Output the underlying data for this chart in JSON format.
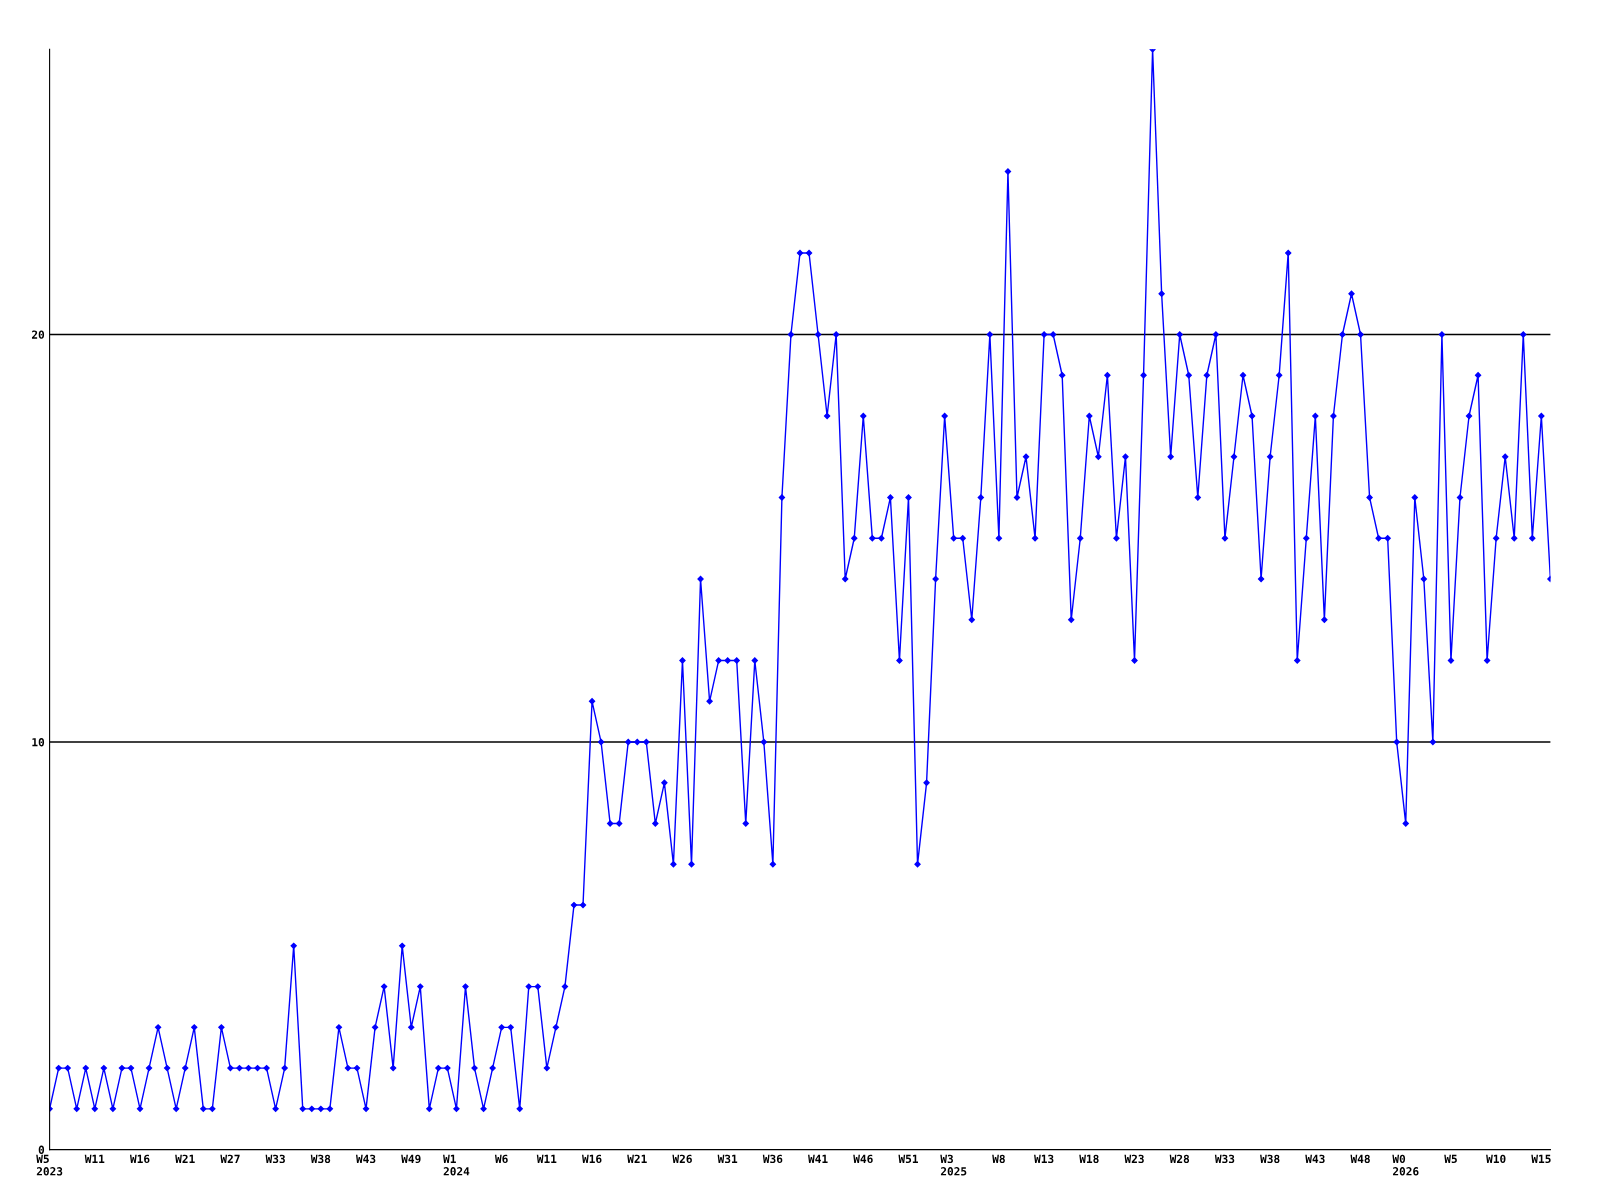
{
  "chart_data": {
    "type": "line",
    "categories": [
      "W5\n2023",
      null,
      null,
      null,
      null,
      "W11",
      null,
      null,
      null,
      null,
      "W16",
      null,
      null,
      null,
      null,
      "W21",
      null,
      null,
      null,
      null,
      "W27",
      null,
      null,
      null,
      null,
      "W33",
      null,
      null,
      null,
      null,
      "W38",
      null,
      null,
      null,
      null,
      "W43",
      null,
      null,
      null,
      null,
      "W49",
      null,
      null,
      null,
      null,
      "W1\n2024",
      null,
      null,
      null,
      null,
      "W6",
      null,
      null,
      null,
      null,
      "W11",
      null,
      null,
      null,
      null,
      "W16",
      null,
      null,
      null,
      null,
      "W21",
      null,
      null,
      null,
      null,
      "W26",
      null,
      null,
      null,
      null,
      "W31",
      null,
      null,
      null,
      null,
      "W36",
      null,
      null,
      null,
      null,
      "W41",
      null,
      null,
      null,
      null,
      "W46",
      null,
      null,
      null,
      null,
      "W51",
      null,
      null,
      null,
      null,
      "W3\n2025",
      null,
      null,
      null,
      null,
      "W8",
      null,
      null,
      null,
      null,
      "W13",
      null,
      null,
      null,
      null,
      "W18",
      null,
      null,
      null,
      null,
      "W23",
      null,
      null,
      null,
      null,
      "W28",
      null,
      null,
      null,
      null,
      "W33",
      null,
      null,
      null,
      null,
      "W38",
      null,
      null,
      null,
      null,
      "W43",
      null,
      null,
      null,
      null,
      "W48",
      null,
      null,
      null,
      null,
      "W0\n2026",
      null,
      null,
      null,
      null,
      "W5",
      null,
      null,
      null,
      null,
      "W10",
      null,
      null,
      null,
      null,
      "W15",
      null
    ],
    "series": [
      {
        "color": "#0000ff",
        "values": [
          1,
          2,
          2,
          1,
          2,
          1,
          2,
          1,
          2,
          2,
          1,
          2,
          3,
          2,
          1,
          2,
          3,
          1,
          1,
          3,
          2,
          2,
          2,
          2,
          2,
          1,
          2,
          5,
          1,
          1,
          1,
          1,
          3,
          2,
          2,
          1,
          3,
          4,
          2,
          5,
          3,
          4,
          1,
          2,
          2,
          1,
          4,
          2,
          1,
          2,
          3,
          3,
          1,
          4,
          4,
          2,
          3,
          4,
          6,
          6,
          11,
          10,
          8,
          8,
          10,
          10,
          10,
          8,
          9,
          7,
          12,
          7,
          14,
          11,
          12,
          12,
          12,
          8,
          12,
          10,
          7,
          16,
          20,
          22,
          22,
          20,
          18,
          20,
          14,
          15,
          18,
          15,
          15,
          16,
          12,
          16,
          7,
          9,
          14,
          18,
          15,
          15,
          13,
          16,
          20,
          15,
          24,
          16,
          17,
          15,
          20,
          20,
          19,
          13,
          15,
          18,
          17,
          19,
          15,
          17,
          12,
          19,
          27,
          21,
          17,
          20,
          19,
          16,
          19,
          20,
          15,
          17,
          19,
          18,
          14,
          17,
          19,
          22,
          12,
          15,
          18,
          13,
          18,
          20,
          21,
          20,
          16,
          15,
          15,
          10,
          8,
          16,
          14,
          10,
          20,
          12,
          16,
          18,
          19,
          12,
          15,
          17,
          15,
          20,
          15,
          18,
          14
        ]
      }
    ],
    "ylim": [
      0,
      27
    ],
    "yticks": [
      0,
      10,
      20
    ],
    "grid": "y",
    "marker": "diamond",
    "line_style": "solid"
  }
}
